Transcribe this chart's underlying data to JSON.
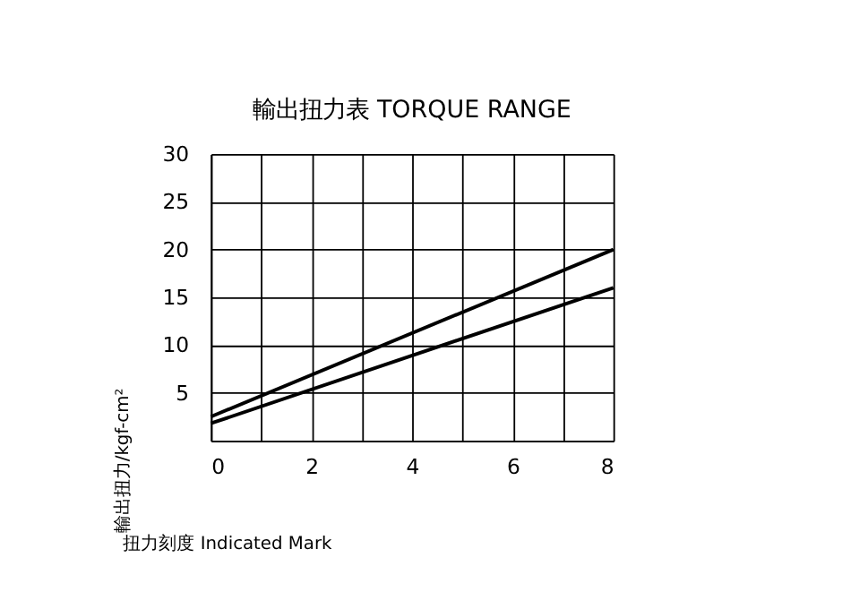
{
  "chart_data": {
    "type": "line",
    "title": "輸出扭力表  TORQUE RANGE",
    "xlabel": "扭力刻度 Indicated Mark",
    "ylabel": "輸出扭力/kgf-cm²",
    "x": [
      0,
      8
    ],
    "series": [
      {
        "color": "#000000",
        "values": [
          2.5,
          20
        ]
      },
      {
        "color": "#000000",
        "values": [
          1.8,
          16
        ]
      }
    ],
    "xlim": [
      0,
      8
    ],
    "xticks": [
      0,
      {
        "value": 1,
        "label": null
      },
      2,
      {
        "value": 3,
        "label": null
      },
      4,
      {
        "value": 5,
        "label": null
      },
      6,
      {
        "value": 7,
        "label": null
      },
      8
    ],
    "ylim": [
      0,
      30
    ],
    "yticks": [
      {
        "value": 0,
        "label": null
      },
      5,
      10,
      15,
      20,
      25,
      30
    ],
    "grid": true,
    "marker": "none",
    "line_style": "solid",
    "legend": false
  }
}
